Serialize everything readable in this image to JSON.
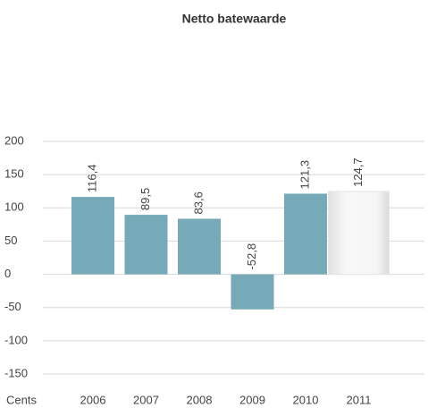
{
  "chart_data": {
    "type": "bar",
    "title": "Netto batewaarde",
    "x_label": "Cents",
    "categories": [
      "2006",
      "2007",
      "2008",
      "2009",
      "2010",
      "2011"
    ],
    "values": [
      116.4,
      89.5,
      83.6,
      -52.8,
      121.3,
      124.7
    ],
    "value_labels": [
      "116,4",
      "89,5",
      "83,6",
      "-52,8",
      "121,3",
      "124,7"
    ],
    "colors": [
      "#77aab8",
      "#77aab8",
      "#77aab8",
      "#77aab8",
      "#77aab8",
      "#eef0ee"
    ],
    "ylim": [
      -150,
      200
    ],
    "yticks": [
      -150,
      -100,
      -50,
      0,
      50,
      100,
      150,
      200
    ],
    "grid": true
  }
}
